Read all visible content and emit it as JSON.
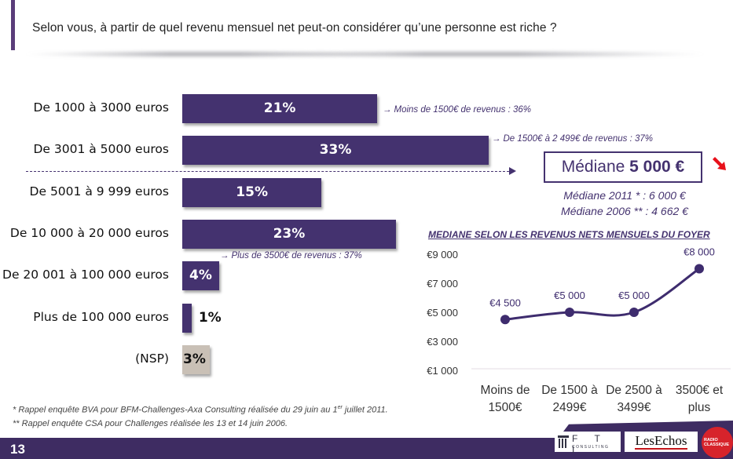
{
  "header": {
    "question": "Selon vous, à partir de quel revenu mensuel net peut-on considérer qu’une personne est riche ?"
  },
  "colors": {
    "accent": "#44326f",
    "nsp_bar": "#c9c0b6",
    "red_arrow": "#e8101a",
    "footer": "#3e2c62"
  },
  "chart_data": [
    {
      "type": "bar",
      "orientation": "horizontal",
      "title": "Selon vous, à partir de quel revenu mensuel net peut-on considérer qu’une personne est riche ?",
      "categories": [
        "De 1000 à 3000 euros",
        "De 3001 à 5000 euros",
        "De 5001 à 9 999 euros",
        "De 10 000 à 20 000 euros",
        "De 20 001 à 100 000 euros",
        "Plus de 100 000 euros",
        "(NSP)"
      ],
      "values": [
        21,
        33,
        15,
        23,
        4,
        1,
        3
      ],
      "value_labels": [
        "21%",
        "33%",
        "15%",
        "23%",
        "4%",
        "1%",
        "3%"
      ],
      "unit": "%",
      "annotations": [
        "Moins de 1500€ de revenus : 36%",
        "De 1500€ à 2 499€ de revenus : 37%",
        "Plus de 3500€ de revenus : 37%"
      ]
    },
    {
      "type": "line",
      "title": "MEDIANE SELON LES REVENUS NETS MENSUELS DU FOYER",
      "categories": [
        "Moins de 1500€",
        "De 1500 à 2499€",
        "De 2500 à 3499€",
        "3500€ et plus"
      ],
      "category_lines": [
        [
          "Moins de",
          "1500€"
        ],
        [
          "De 1500 à",
          "2499€"
        ],
        [
          "De 2500 à",
          "3499€"
        ],
        [
          "3500€ et",
          "plus"
        ]
      ],
      "values": [
        4500,
        5000,
        5000,
        8000
      ],
      "value_labels": [
        "€4 500",
        "€5 000",
        "€5 000",
        "€8 000"
      ],
      "yticks": [
        1000,
        3000,
        5000,
        7000,
        9000
      ],
      "ytick_labels": [
        "€1 000",
        "€3 000",
        "€5 000",
        "€7 000",
        "€9 000"
      ],
      "ylim": [
        1000,
        9000
      ],
      "grid": false
    }
  ],
  "median": {
    "prefix": "Médiane",
    "value": "5 000 €",
    "line_2011": "Médiane 2011 * : 6 000 €",
    "line_2006": "Médiane 2006 ** : 4 662 €",
    "trend_icon": "down-right-arrow"
  },
  "footnotes": {
    "note1_a": "* Rappel enquête BVA pour BFM-Challenges-Axa Consulting réalisée du 29 juin au 1",
    "note1_sup": "er",
    "note1_b": " juillet 2011.",
    "note2": "** Rappel enquête CSA pour Challenges réalisée les 13 et 14 juin 2006."
  },
  "footer": {
    "page_number": "13",
    "logos": {
      "fti": "F T I",
      "fti_sub": "CONSULTING",
      "echos": "LesEchos",
      "radio_1": "RADIO",
      "radio_2": "CLASSIQUE"
    }
  }
}
